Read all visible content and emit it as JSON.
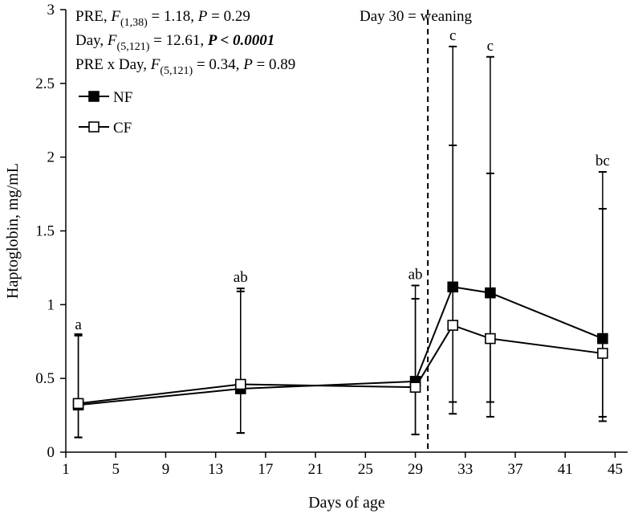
{
  "chart_data": {
    "type": "line",
    "xlabel": "Days of age",
    "ylabel": "Haptoglobin, mg/mL",
    "xlim": [
      1,
      46
    ],
    "ylim": [
      0,
      3
    ],
    "x_ticks": [
      1,
      5,
      9,
      13,
      17,
      21,
      25,
      29,
      33,
      37,
      41,
      45
    ],
    "y_ticks": [
      0,
      0.5,
      1,
      1.5,
      2,
      2.5,
      3
    ],
    "y_tick_labels": [
      "0",
      "0.5",
      "1",
      "1.5",
      "2",
      "2.5",
      "3"
    ],
    "grid": false,
    "legend_position": "top-left",
    "reference_line": {
      "x": 30,
      "label": "Day 30 = weaning"
    },
    "stats": [
      {
        "pre": "PRE, ",
        "f": "F",
        "sub": "(1,38)",
        "mid": " = 1.18, ",
        "p": "P",
        "post": " = 0.29",
        "bold": ""
      },
      {
        "pre": "Day, ",
        "f": "F",
        "sub": "(5,121)",
        "mid": " = 12.61, ",
        "p": "",
        "post": "",
        "bold": "P < 0.0001"
      },
      {
        "pre": "PRE x Day, ",
        "f": "F",
        "sub": "(5,121)",
        "mid": " = 0.34, ",
        "p": "P",
        "post": " = 0.89",
        "bold": ""
      }
    ],
    "x": [
      2,
      15,
      29,
      32,
      35,
      44
    ],
    "series": [
      {
        "name": "NF",
        "marker": "filled-square",
        "values": [
          0.32,
          0.43,
          0.48,
          1.12,
          1.08,
          0.77
        ],
        "error_upper": [
          0.79,
          1.11,
          1.13,
          2.75,
          2.68,
          1.9
        ],
        "error_lower": [
          0.1,
          0.13,
          0.12,
          0.34,
          0.34,
          0.24
        ]
      },
      {
        "name": "CF",
        "marker": "open-square",
        "values": [
          0.33,
          0.46,
          0.44,
          0.86,
          0.77,
          0.67
        ],
        "error_upper": [
          0.8,
          1.09,
          1.04,
          2.08,
          1.89,
          1.65
        ],
        "error_lower": [
          0.1,
          0.13,
          0.12,
          0.26,
          0.24,
          0.21
        ]
      }
    ],
    "significance_letters": [
      {
        "x": 2,
        "y": 0.79,
        "label": "a"
      },
      {
        "x": 15,
        "y": 1.11,
        "label": "ab"
      },
      {
        "x": 29,
        "y": 1.13,
        "label": "ab"
      },
      {
        "x": 32,
        "y": 2.75,
        "label": "c"
      },
      {
        "x": 35,
        "y": 2.68,
        "label": "c"
      },
      {
        "x": 44,
        "y": 1.9,
        "label": "bc"
      }
    ]
  }
}
